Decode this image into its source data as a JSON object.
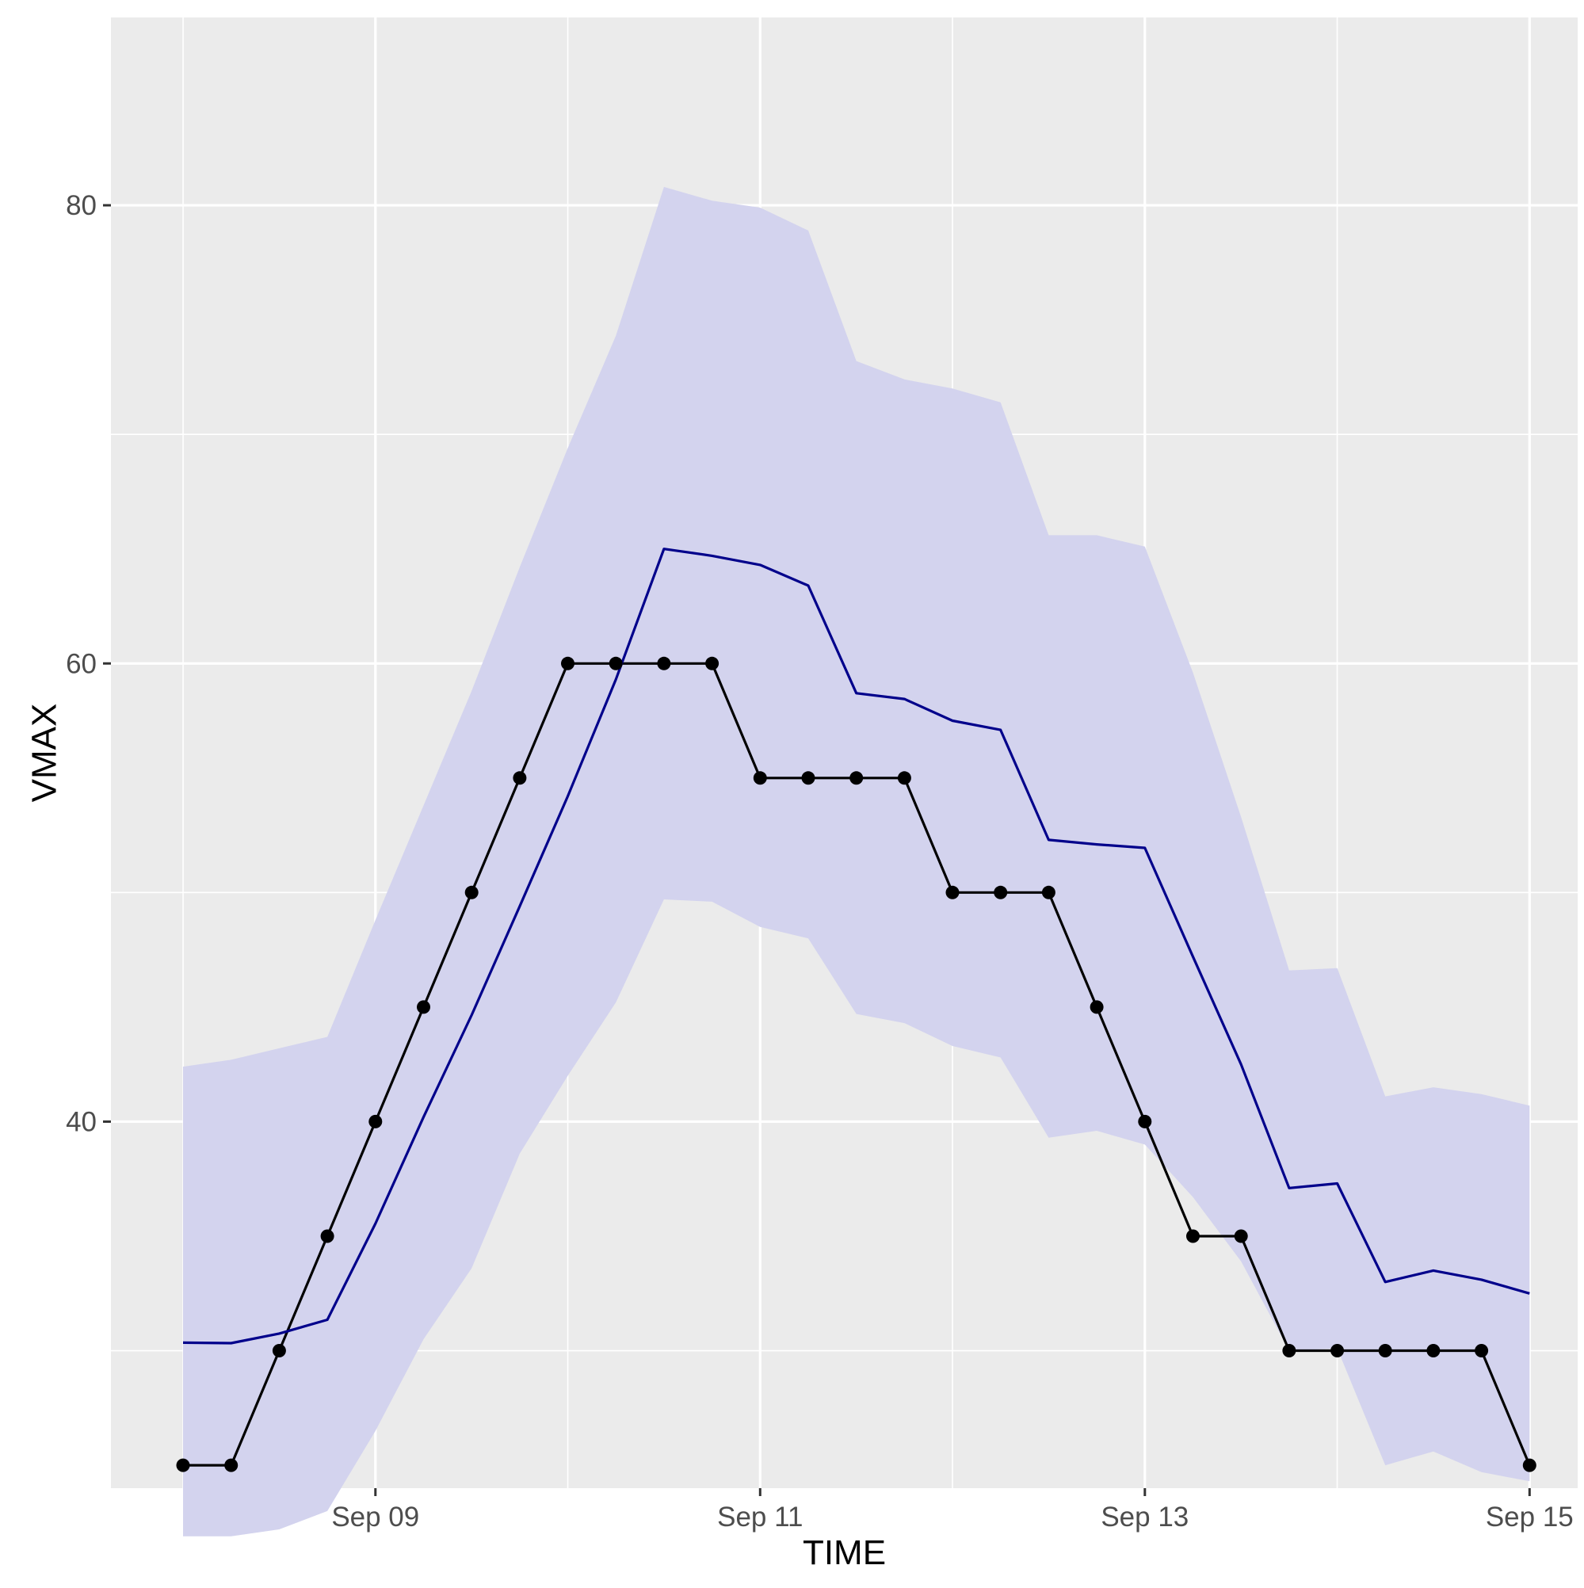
{
  "chart_data": {
    "type": "line",
    "xlabel": "TIME",
    "ylabel": "VMAX",
    "x_tick_labels": [
      "Sep 09",
      "Sep 11",
      "Sep 13",
      "Sep 15"
    ],
    "y_tick_labels": [
      "40",
      "60",
      "80"
    ],
    "x_ticks": [
      "2000-09-09",
      "2000-09-11",
      "2000-09-13",
      "2000-09-15"
    ],
    "y_ticks": [
      40,
      60,
      80
    ],
    "xlim": [
      "2000-09-07 15:00",
      "2000-09-15 06:00"
    ],
    "ylim": [
      24,
      88.2
    ],
    "grid": true,
    "x": [
      "2000-09-08 00:00",
      "2000-09-08 06:00",
      "2000-09-08 12:00",
      "2000-09-08 18:00",
      "2000-09-09 00:00",
      "2000-09-09 06:00",
      "2000-09-09 12:00",
      "2000-09-09 18:00",
      "2000-09-10 00:00",
      "2000-09-10 06:00",
      "2000-09-10 12:00",
      "2000-09-10 18:00",
      "2000-09-11 00:00",
      "2000-09-11 06:00",
      "2000-09-11 12:00",
      "2000-09-11 18:00",
      "2000-09-12 00:00",
      "2000-09-12 06:00",
      "2000-09-12 12:00",
      "2000-09-12 18:00",
      "2000-09-13 00:00",
      "2000-09-13 06:00",
      "2000-09-13 12:00",
      "2000-09-13 18:00",
      "2000-09-14 00:00",
      "2000-09-14 06:00",
      "2000-09-14 12:00",
      "2000-09-14 18:00",
      "2000-09-15 00:00"
    ],
    "series": [
      {
        "kind": "observed",
        "color": "#000000",
        "markers": true,
        "values": [
          25,
          25,
          30,
          35,
          40,
          45,
          50,
          55,
          60,
          60,
          60,
          60,
          55,
          55,
          55,
          55,
          50,
          50,
          50,
          45,
          40,
          35,
          35,
          30,
          30,
          30,
          30,
          30,
          25
        ]
      },
      {
        "kind": "predicted",
        "color": "#00008B",
        "markers": false,
        "values": [
          30.35,
          30.33,
          30.75,
          31.35,
          35.55,
          40.2,
          44.65,
          49.4,
          54.2,
          59.3,
          65.0,
          64.7,
          64.3,
          63.4,
          58.7,
          58.45,
          57.5,
          57.1,
          52.3,
          52.1,
          51.95,
          47.2,
          42.5,
          37.1,
          37.3,
          33.0,
          33.5,
          33.1,
          32.5
        ]
      }
    ],
    "band": {
      "color": "#D3D3EE",
      "lower": [
        21.9,
        21.9,
        22.2,
        23.0,
        26.5,
        30.5,
        33.6,
        38.6,
        42.0,
        45.2,
        49.7,
        49.6,
        48.5,
        48.0,
        44.7,
        44.3,
        43.3,
        42.8,
        39.3,
        39.6,
        39.0,
        36.7,
        33.9,
        30.0,
        30.1,
        25.0,
        25.6,
        24.7,
        24.3
      ],
      "upper": [
        42.4,
        42.7,
        43.2,
        43.7,
        48.8,
        53.8,
        58.8,
        64.2,
        69.4,
        74.3,
        80.8,
        80.2,
        79.9,
        78.9,
        73.2,
        72.4,
        72.0,
        71.4,
        65.6,
        65.6,
        65.1,
        59.6,
        53.3,
        46.6,
        46.7,
        41.1,
        41.5,
        41.2,
        40.7
      ]
    }
  }
}
